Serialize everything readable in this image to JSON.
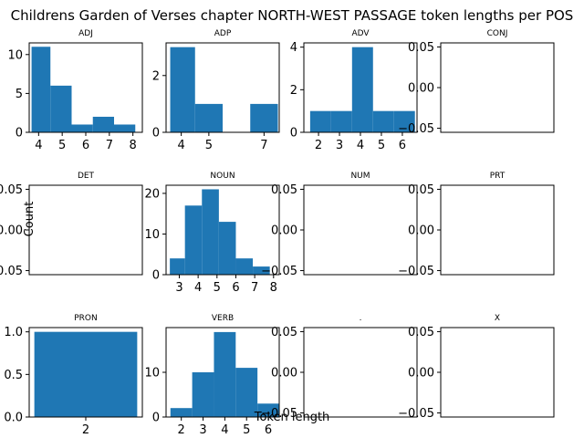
{
  "chart_data": {
    "type": "bar",
    "title": "Childrens Garden of Verses chapter NORTH-WEST PASSAGE token lengths per POS",
    "xlabel": "Token length",
    "ylabel": "Count",
    "bar_color": "#1f77b4",
    "panels": [
      {
        "name": "ADJ",
        "x_ticks": [
          "4",
          "5",
          "6",
          "7",
          "8"
        ],
        "y_ticks": [
          "0",
          "5",
          "10"
        ],
        "xlim": [
          3.6,
          8.4
        ],
        "ylim": [
          0,
          11.5
        ],
        "bars": [
          {
            "x0": 3.7,
            "x1": 4.5,
            "count": 11
          },
          {
            "x0": 4.5,
            "x1": 5.4,
            "count": 6
          },
          {
            "x0": 5.4,
            "x1": 6.3,
            "count": 1
          },
          {
            "x0": 6.3,
            "x1": 7.2,
            "count": 2
          },
          {
            "x0": 7.2,
            "x1": 8.1,
            "count": 1
          }
        ]
      },
      {
        "name": "ADP",
        "x_ticks": [
          "4",
          "5",
          "7"
        ],
        "y_ticks": [
          "0",
          "2"
        ],
        "xlim": [
          3.45,
          7.55
        ],
        "ylim": [
          0,
          3.15
        ],
        "bars": [
          {
            "x0": 3.6,
            "x1": 4.5,
            "count": 3
          },
          {
            "x0": 4.5,
            "x1": 5.5,
            "count": 1
          },
          {
            "x0": 6.5,
            "x1": 7.5,
            "count": 1
          }
        ]
      },
      {
        "name": "ADV",
        "x_ticks": [
          "2",
          "3",
          "4",
          "5",
          "6"
        ],
        "y_ticks": [
          "0",
          "2",
          "4"
        ],
        "xlim": [
          1.3,
          6.7
        ],
        "ylim": [
          0,
          4.2
        ],
        "bars": [
          {
            "x0": 1.6,
            "x1": 2.6,
            "count": 1
          },
          {
            "x0": 2.6,
            "x1": 3.6,
            "count": 1
          },
          {
            "x0": 3.6,
            "x1": 4.6,
            "count": 4
          },
          {
            "x0": 4.6,
            "x1": 5.6,
            "count": 1
          },
          {
            "x0": 5.6,
            "x1": 6.6,
            "count": 1
          }
        ]
      },
      {
        "name": "CONJ",
        "x_ticks": [],
        "y_ticks": [
          "0.05",
          "0.00",
          "−0.05"
        ],
        "xlim": [
          0,
          1
        ],
        "ylim": [
          -0.055,
          0.055
        ],
        "bars": []
      },
      {
        "name": "DET",
        "x_ticks": [],
        "y_ticks": [
          "0.05",
          "0.00",
          "−0.05"
        ],
        "xlim": [
          0,
          1
        ],
        "ylim": [
          -0.055,
          0.055
        ],
        "bars": []
      },
      {
        "name": "NOUN",
        "x_ticks": [
          "3",
          "4",
          "5",
          "6",
          "7",
          "8"
        ],
        "y_ticks": [
          "0",
          "10",
          "20"
        ],
        "xlim": [
          2.3,
          8.3
        ],
        "ylim": [
          0,
          22
        ],
        "bars": [
          {
            "x0": 2.5,
            "x1": 3.3,
            "count": 4
          },
          {
            "x0": 3.3,
            "x1": 4.2,
            "count": 17
          },
          {
            "x0": 4.2,
            "x1": 5.1,
            "count": 21
          },
          {
            "x0": 5.1,
            "x1": 6.0,
            "count": 13
          },
          {
            "x0": 6.0,
            "x1": 6.9,
            "count": 4
          },
          {
            "x0": 6.9,
            "x1": 7.8,
            "count": 2
          }
        ]
      },
      {
        "name": "NUM",
        "x_ticks": [],
        "y_ticks": [
          "0.05",
          "0.00",
          "−0.05"
        ],
        "xlim": [
          0,
          1
        ],
        "ylim": [
          -0.055,
          0.055
        ],
        "bars": []
      },
      {
        "name": "PRT",
        "x_ticks": [],
        "y_ticks": [
          "0.05",
          "0.00",
          "−0.05"
        ],
        "xlim": [
          0,
          1
        ],
        "ylim": [
          -0.055,
          0.055
        ],
        "bars": []
      },
      {
        "name": "PRON",
        "x_ticks": [
          "2"
        ],
        "y_ticks": [
          "0.0",
          "0.5",
          "1.0"
        ],
        "xlim": [
          1.45,
          2.55
        ],
        "ylim": [
          0,
          1.05
        ],
        "bars": [
          {
            "x0": 1.5,
            "x1": 2.5,
            "count": 1
          }
        ]
      },
      {
        "name": "VERB",
        "x_ticks": [
          "2",
          "3",
          "4",
          "5",
          "6"
        ],
        "y_ticks": [
          "10",
          "0"
        ],
        "xlim": [
          1.3,
          6.5
        ],
        "ylim": [
          0,
          20
        ],
        "bars": [
          {
            "x0": 1.5,
            "x1": 2.5,
            "count": 2
          },
          {
            "x0": 2.5,
            "x1": 3.5,
            "count": 10
          },
          {
            "x0": 3.5,
            "x1": 4.5,
            "count": 19
          },
          {
            "x0": 4.5,
            "x1": 5.5,
            "count": 11
          },
          {
            "x0": 5.5,
            "x1": 6.5,
            "count": 3
          }
        ]
      },
      {
        "name": ".",
        "x_ticks": [],
        "y_ticks": [
          "0.05",
          "0.00",
          "−0.05"
        ],
        "xlim": [
          0,
          1
        ],
        "ylim": [
          -0.055,
          0.055
        ],
        "bars": []
      },
      {
        "name": "X",
        "x_ticks": [],
        "y_ticks": [
          "0.05",
          "0.00",
          "−0.05"
        ],
        "xlim": [
          0,
          1
        ],
        "ylim": [
          -0.055,
          0.055
        ],
        "bars": []
      }
    ]
  }
}
